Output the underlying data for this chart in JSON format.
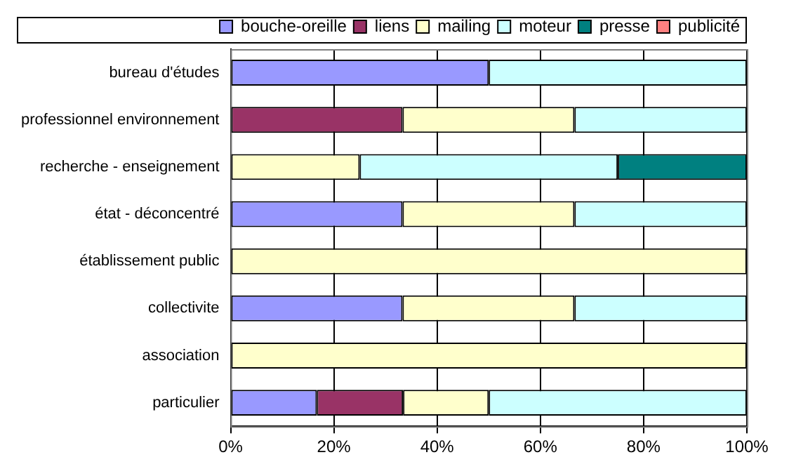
{
  "chart_data": {
    "type": "bar",
    "orientation": "horizontal",
    "stacked": true,
    "categories": [
      "bureau d'études",
      "professionnel environnement",
      "recherche - enseignement",
      "état - déconcentré",
      "établissement public",
      "collectivite",
      "association",
      "particulier"
    ],
    "series": [
      {
        "name": "bouche-oreille",
        "color": "#9999ff",
        "values": [
          50,
          0,
          0,
          33.3,
          0,
          33.3,
          0,
          16.7
        ]
      },
      {
        "name": "liens",
        "color": "#993366",
        "values": [
          0,
          33.3,
          0,
          0,
          0,
          0,
          0,
          16.7
        ]
      },
      {
        "name": "mailing",
        "color": "#ffffcc",
        "values": [
          0,
          33.3,
          25,
          33.3,
          100,
          33.3,
          100,
          16.6
        ]
      },
      {
        "name": "moteur",
        "color": "#ccffff",
        "values": [
          50,
          33.4,
          50,
          33.4,
          0,
          33.4,
          0,
          50
        ]
      },
      {
        "name": "presse",
        "color": "#008080",
        "values": [
          0,
          0,
          25,
          0,
          0,
          0,
          0,
          0
        ]
      },
      {
        "name": "publicité",
        "color": "#ff8080",
        "values": [
          0,
          0,
          0,
          0,
          0,
          0,
          0,
          0
        ]
      }
    ],
    "xlim": [
      0,
      100
    ],
    "xticks": [
      {
        "value": 0,
        "label": "0%"
      },
      {
        "value": 20,
        "label": "20%"
      },
      {
        "value": 40,
        "label": "40%"
      },
      {
        "value": 60,
        "label": "60%"
      },
      {
        "value": 80,
        "label": "80%"
      },
      {
        "value": 100,
        "label": "100%"
      }
    ],
    "grid": "x",
    "legend": "top right"
  }
}
